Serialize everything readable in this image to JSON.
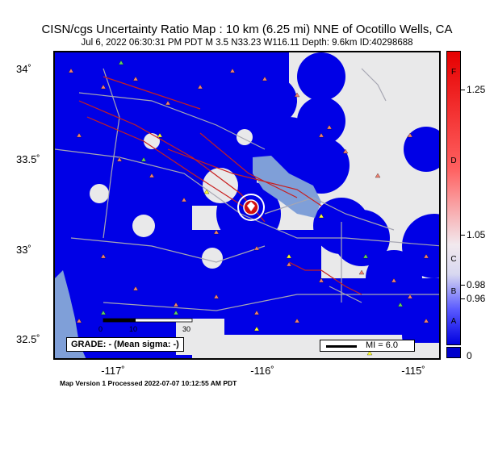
{
  "header": {
    "title": "CISN/cgs Uncertainty Ratio Map : 10 km (6.25 mi) NNE of Ocotillo Wells, CA",
    "subtitle": "Jul  6, 2022 06:30:31 PM PDT   M 3.5   N33.23 W116.11   Depth: 9.6km   ID:40298688"
  },
  "axes": {
    "lat_labels": [
      "34˚",
      "33.5˚",
      "33˚",
      "32.5˚"
    ],
    "lon_labels": [
      "-117˚",
      "-116˚",
      "-115˚"
    ]
  },
  "legend": {
    "grade": "GRADE: - (Mean sigma: -)",
    "mi_label": "MI = 6.0"
  },
  "colorbar": {
    "letters": [
      "F",
      "D",
      "C",
      "B",
      "A"
    ],
    "values": [
      "1.25",
      "1.05",
      "0.98",
      "0.96",
      "0"
    ]
  },
  "scale_bar": {
    "labels": [
      "0",
      "10",
      "30"
    ]
  },
  "footer": "Map Version 1 Processed 2022-07-07 10:12:55 AM PDT",
  "colors": {
    "background": "#e9e9ea",
    "coverage": "#0000e6",
    "lake": "#7f9fd8",
    "faults": "#c81e1e",
    "station": "#f08070"
  }
}
